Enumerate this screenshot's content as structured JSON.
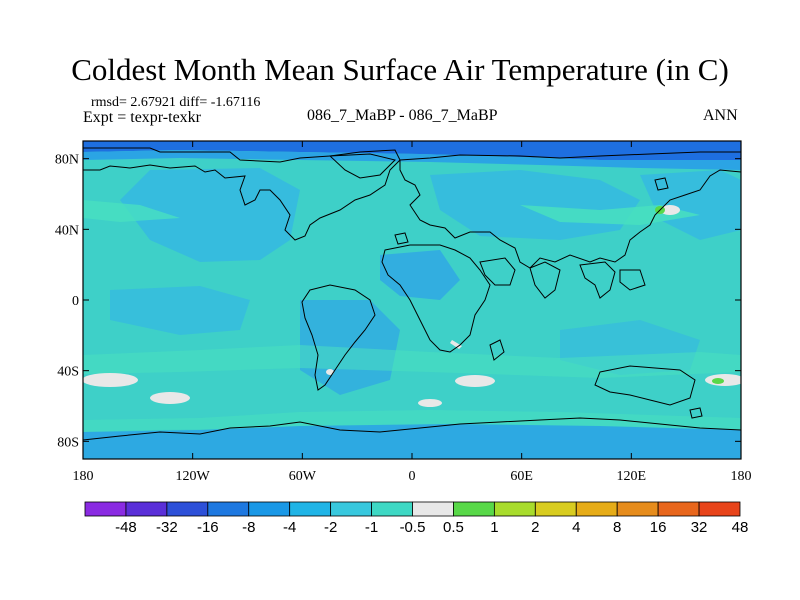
{
  "chart_data": {
    "type": "heatmap",
    "title": "Coldest Month Mean Surface Air Temperature (in C)",
    "stats_label": "rmsd= 2.67921 diff= -1.67116",
    "expt_label": "Expt = texpr-texkr",
    "center_label": "086_7_MaBP - 086_7_MaBP",
    "season_label": "ANN",
    "x_ticks": [
      "180",
      "120W",
      "60W",
      "0",
      "60E",
      "120E",
      "180"
    ],
    "y_ticks": [
      "80N",
      "40N",
      "0",
      "40S",
      "80S"
    ],
    "xlim": [
      -180,
      180
    ],
    "ylim": [
      -90,
      90
    ],
    "colorbar": {
      "labels": [
        "-48",
        "-32",
        "-16",
        "-8",
        "-4",
        "-2",
        "-1",
        "-0.5",
        "0.5",
        "1",
        "2",
        "4",
        "8",
        "16",
        "32",
        "48"
      ],
      "colors": [
        "#8a2be2",
        "#5a2fd8",
        "#2d50d8",
        "#1e78e0",
        "#1a98e6",
        "#20b4e6",
        "#38c8de",
        "#3ed8c4",
        "#e8e8e8",
        "#58d848",
        "#a8dc2c",
        "#d8cc20",
        "#e6ac18",
        "#e68c1c",
        "#e8661c",
        "#e8441a"
      ]
    }
  }
}
